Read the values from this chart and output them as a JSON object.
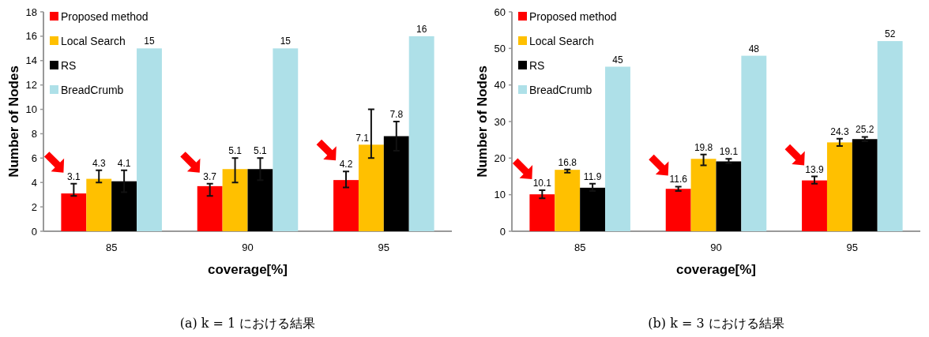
{
  "chart_data": [
    {
      "type": "bar",
      "xlabel": "coverage[%]",
      "ylabel": "Number of Nodes",
      "categories": [
        "85",
        "90",
        "95"
      ],
      "ylim": [
        0,
        18
      ],
      "yticks": [
        0,
        2,
        4,
        6,
        8,
        10,
        12,
        14,
        16,
        18
      ],
      "data_labels": true,
      "legend": "top left",
      "annotations": [
        "(a) k = 1 における結果"
      ],
      "series": [
        {
          "name": "Proposed method",
          "color": "#ff0000",
          "values": [
            3.1,
            3.7,
            4.2
          ],
          "errors": [
            [
              2.9,
              3.9
            ],
            [
              2.9,
              3.9
            ],
            [
              3.6,
              4.9
            ]
          ]
        },
        {
          "name": "Local Search",
          "color": "#ffc000",
          "values": [
            4.3,
            5.1,
            7.1
          ],
          "errors": [
            [
              4.0,
              5.0
            ],
            [
              4.0,
              6.0
            ],
            [
              6.0,
              10.0
            ]
          ]
        },
        {
          "name": "RS",
          "color": "#000000",
          "values": [
            4.1,
            5.1,
            7.8
          ],
          "errors": [
            [
              3.2,
              5.0
            ],
            [
              4.2,
              6.0
            ],
            [
              6.6,
              9.0
            ]
          ]
        },
        {
          "name": "BreadCrumb",
          "color": "#aee0e8",
          "values": [
            15,
            15,
            16
          ]
        }
      ]
    },
    {
      "type": "bar",
      "xlabel": "coverage[%]",
      "ylabel": "Number of Nodes",
      "categories": [
        "85",
        "90",
        "95"
      ],
      "ylim": [
        0,
        60
      ],
      "yticks": [
        0,
        10,
        20,
        30,
        40,
        50,
        60
      ],
      "data_labels": true,
      "legend": "top left",
      "annotations": [
        "(b) k = 3 における結果"
      ],
      "series": [
        {
          "name": "Proposed method",
          "color": "#ff0000",
          "values": [
            10.1,
            11.6,
            13.9
          ],
          "errors": [
            [
              9.0,
              11.2
            ],
            [
              11.0,
              12.2
            ],
            [
              13.0,
              15.0
            ]
          ]
        },
        {
          "name": "Local Search",
          "color": "#ffc000",
          "values": [
            16.8,
            19.8,
            24.3
          ],
          "errors": [
            [
              16.0,
              16.9
            ],
            [
              18.0,
              21.0
            ],
            [
              23.3,
              25.3
            ]
          ]
        },
        {
          "name": "RS",
          "color": "#000000",
          "values": [
            11.9,
            19.1,
            25.2
          ],
          "errors": [
            [
              11.0,
              13.0
            ],
            [
              18.6,
              19.8
            ],
            [
              24.6,
              25.8
            ]
          ]
        },
        {
          "name": "BreadCrumb",
          "color": "#aee0e8",
          "values": [
            45,
            48,
            52
          ]
        }
      ]
    }
  ]
}
